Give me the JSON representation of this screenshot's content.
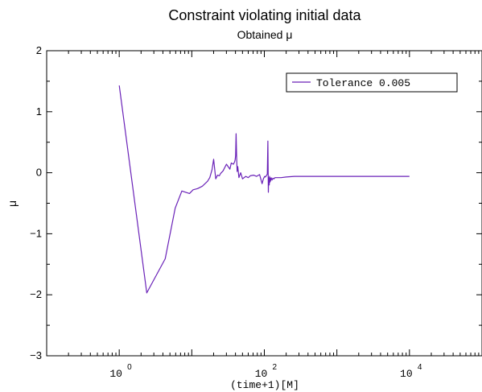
{
  "chart_data": {
    "type": "line",
    "title": "Constraint violating initial data",
    "subtitle": "Obtained μ",
    "xlabel": "(time+1)[M]",
    "ylabel": "μ",
    "xscale": "log",
    "xlim": [
      0.1,
      100000
    ],
    "ylim": [
      -3,
      2
    ],
    "y_ticks": [
      "−3",
      "−2",
      "−1",
      "0",
      "1",
      "2"
    ],
    "x_ticks": [
      {
        "base": "10",
        "exp": "0",
        "value": 1
      },
      {
        "base": "10",
        "exp": "2",
        "value": 100
      },
      {
        "base": "10",
        "exp": "4",
        "value": 10000
      }
    ],
    "grid": false,
    "legend_position": "top-right",
    "series": [
      {
        "name": "Tolerance 0.005",
        "color": "#6a22b8",
        "x": [
          1,
          2.4,
          4.3,
          5.9,
          7.3,
          9.3,
          10.4,
          12.0,
          14.0,
          16.5,
          17.7,
          19.0,
          20.0,
          21.4,
          22.6,
          24.0,
          25.0,
          27.0,
          30.0,
          33.5,
          35.0,
          36.0,
          37.5,
          39.0,
          39.6,
          40.2,
          40.8,
          41.5,
          42.2,
          43.0,
          44.6,
          47.2,
          50.0,
          55.5,
          60.0,
          64.0,
          71.0,
          78.0,
          86.0,
          93.0,
          97.0,
          101.0,
          103.5,
          106.0,
          108.0,
          110.0,
          112.0,
          113.5,
          114.5,
          115.5,
          116.0,
          117.0,
          118.0,
          119.0,
          120.0,
          121.5,
          124.0,
          127.5,
          131.0,
          135.5,
          140.0,
          150.0,
          170.0,
          200.0,
          260.0,
          400.0,
          1000.0,
          3000.0,
          10000.0
        ],
        "y": [
          1.43,
          -1.97,
          -1.41,
          -0.58,
          -0.3,
          -0.34,
          -0.28,
          -0.26,
          -0.22,
          -0.14,
          -0.08,
          0.05,
          0.22,
          -0.1,
          -0.04,
          -0.05,
          -0.01,
          0.03,
          0.14,
          0.06,
          0.16,
          0.15,
          0.14,
          0.18,
          0.21,
          0.28,
          0.64,
          0.24,
          0.02,
          0.1,
          -0.08,
          0.0,
          -0.1,
          -0.06,
          -0.08,
          -0.05,
          -0.04,
          -0.06,
          -0.03,
          -0.18,
          -0.1,
          -0.06,
          -0.07,
          -0.05,
          -0.04,
          -0.02,
          0.52,
          -0.32,
          -0.1,
          -0.19,
          -0.08,
          -0.2,
          -0.06,
          -0.16,
          -0.09,
          -0.14,
          -0.08,
          -0.12,
          -0.09,
          -0.1,
          -0.08,
          -0.08,
          -0.08,
          -0.07,
          -0.06,
          -0.06,
          -0.06,
          -0.06,
          -0.06
        ]
      }
    ]
  }
}
